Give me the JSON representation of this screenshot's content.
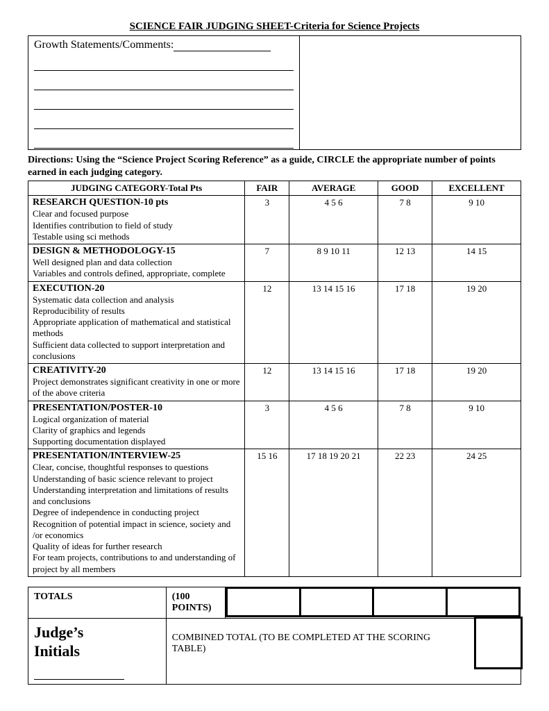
{
  "title": "SCIENCE FAIR JUDGING SHEET-Criteria for Science Projects",
  "comments_label": "Growth Statements/Comments:",
  "directions": "Directions:  Using the “Science Project Scoring Reference” as a guide, CIRCLE the appropriate number of points earned in each judging category.",
  "headers": {
    "category": "JUDGING CATEGORY-Total Pts",
    "fair": "FAIR",
    "average": "AVERAGE",
    "good": "GOOD",
    "excellent": "EXCELLENT"
  },
  "rows": [
    {
      "title": "RESEARCH QUESTION-10 pts",
      "subs": [
        "Clear and focused purpose",
        "Identifies contribution to field of study",
        "Testable using sci methods"
      ],
      "fair": "3",
      "avg": "4  5  6",
      "good": "7  8",
      "exc": "9  10"
    },
    {
      "title": "DESIGN & METHODOLOGY-15",
      "subs": [
        "Well designed plan and data collection",
        "Variables and controls defined, appropriate, complete"
      ],
      "fair": "7",
      "avg": "8  9  10  11",
      "good": "12  13",
      "exc": "14   15"
    },
    {
      "title": "EXECUTION-20",
      "subs": [
        "Systematic data collection and analysis",
        "Reproducibility of results",
        "Appropriate application of mathematical and statistical methods",
        "Sufficient data collected to support interpretation and conclusions"
      ],
      "fair": "12",
      "avg": "13 14 15 16",
      "good": "17 18",
      "exc": "19 20"
    },
    {
      "title": "CREATIVITY-20",
      "subs": [
        "Project demonstrates significant creativity in one or more of the above criteria"
      ],
      "fair": "12",
      "avg": "13 14 15 16",
      "good": "17 18",
      "exc": "19 20"
    },
    {
      "title": "PRESENTATION/POSTER-10",
      "subs": [
        "Logical organization of material",
        "Clarity of graphics and legends",
        "Supporting documentation displayed"
      ],
      "fair": "3",
      "avg": "4  5  6",
      "good": "7  8",
      "exc": "9  10"
    },
    {
      "title": "PRESENTATION/INTERVIEW-25",
      "subs": [
        "Clear, concise, thoughtful responses to questions",
        "Understanding of basic science relevant to project",
        "Understanding interpretation and limitations of results and conclusions",
        "Degree of independence in conducting project",
        "Recognition of potential impact in science, society and /or economics",
        "Quality of ideas for further research",
        "For team projects, contributions to and understanding of project by all members"
      ],
      "fair": "15 16",
      "avg": "17 18 19 20 21",
      "good": "22  23",
      "exc": "24   25"
    }
  ],
  "totals": {
    "label": "TOTALS",
    "max": "(100 POINTS)"
  },
  "judge": {
    "label1": "Judge’s",
    "label2": "Initials",
    "combined": "COMBINED TOTAL (TO BE COMPLETED AT THE SCORING TABLE)"
  }
}
